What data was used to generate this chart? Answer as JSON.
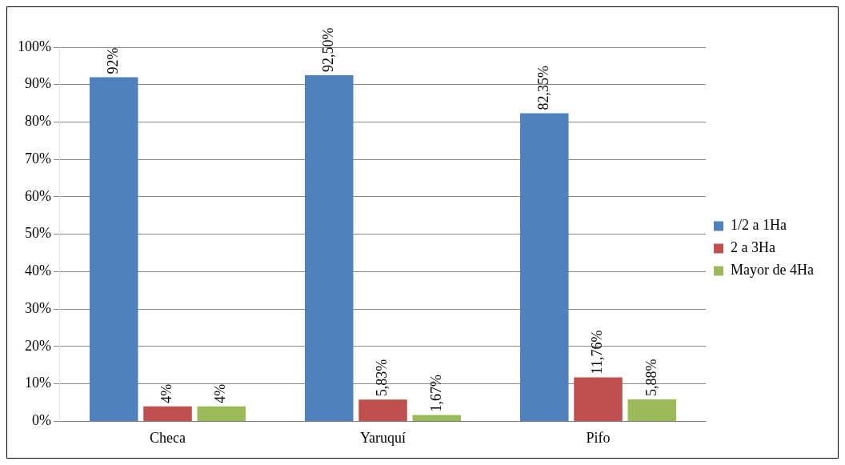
{
  "chart_data": {
    "type": "bar",
    "categories": [
      "Checa",
      "Yaruquí",
      "Pifo"
    ],
    "series": [
      {
        "name": "1/2 a 1Ha",
        "color": "#4f81bd",
        "values": [
          92,
          92.5,
          82.35
        ],
        "value_labels": [
          "92%",
          "92,50%",
          "82,35%"
        ]
      },
      {
        "name": "2 a 3Ha",
        "color": "#c0504d",
        "values": [
          4,
          5.83,
          11.76
        ],
        "value_labels": [
          "4%",
          "5,83%",
          "11,76%"
        ]
      },
      {
        "name": "Mayor de 4Ha",
        "color": "#9bbb59",
        "values": [
          4,
          1.67,
          5.88
        ],
        "value_labels": [
          "4%",
          "1,67%",
          "5,88%"
        ]
      }
    ],
    "ylim": [
      0,
      100
    ],
    "yticks": [
      {
        "value": 0,
        "label": "0%"
      },
      {
        "value": 10,
        "label": "10%"
      },
      {
        "value": 20,
        "label": "20%"
      },
      {
        "value": 30,
        "label": "30%"
      },
      {
        "value": 40,
        "label": "40%"
      },
      {
        "value": 50,
        "label": "50%"
      },
      {
        "value": 60,
        "label": "60%"
      },
      {
        "value": 70,
        "label": "70%"
      },
      {
        "value": 80,
        "label": "80%"
      },
      {
        "value": 90,
        "label": "90%"
      },
      {
        "value": 100,
        "label": "100%"
      }
    ],
    "grid": "y",
    "legend": "right"
  }
}
